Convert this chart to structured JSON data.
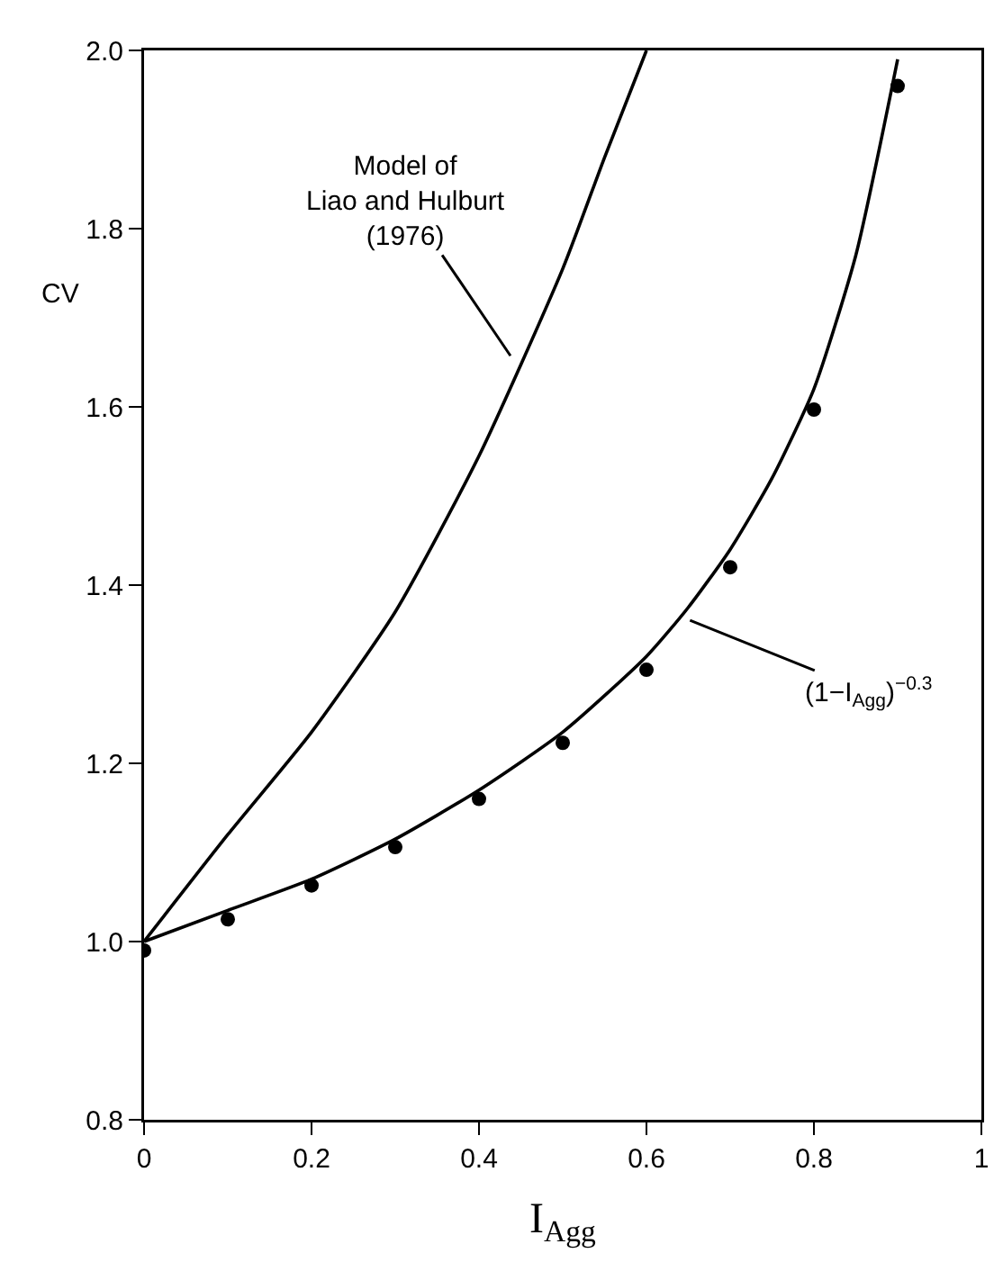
{
  "chart_data": {
    "type": "line",
    "xlabel": "I$_{Agg}$",
    "ylabel": "CV",
    "xlim": [
      0,
      1
    ],
    "xticks": [
      0,
      0.2,
      0.4,
      0.6,
      0.8,
      1
    ],
    "ylim": [
      0.8,
      2.0
    ],
    "yticks": [
      0.8,
      {
        "value": 1,
        "label": "1.0"
      },
      1.2,
      1.4,
      1.6,
      1.8,
      {
        "value": 2,
        "label": "2.0"
      }
    ],
    "grid": false,
    "series": [
      {
        "color": "#000000",
        "x": [
          0,
          0.1,
          0.2,
          0.3,
          0.4,
          0.5,
          0.55,
          0.6
        ],
        "values": [
          1.0,
          1.12,
          1.235,
          1.37,
          1.545,
          1.755,
          1.88,
          2.0
        ]
      },
      {
        "color": "#000000",
        "x": [
          0,
          0.1,
          0.2,
          0.3,
          0.4,
          0.5,
          0.6,
          0.65,
          0.7,
          0.75,
          0.8,
          0.85,
          0.9
        ],
        "values": [
          1.0,
          1.035,
          1.07,
          1.115,
          1.17,
          1.235,
          1.32,
          1.375,
          1.44,
          1.52,
          1.62,
          1.77,
          1.99
        ]
      },
      {
        "type": "scatter",
        "marker": "circle",
        "color": "#000000",
        "x": [
          0,
          0.1,
          0.2,
          0.3,
          0.4,
          0.5,
          0.6,
          0.7,
          0.8,
          0.9
        ],
        "values": [
          0.99,
          1.025,
          1.063,
          1.106,
          1.16,
          1.223,
          1.305,
          1.42,
          1.597,
          1.96
        ]
      }
    ],
    "annotations": [
      {
        "text": "Model of\nLiao and Hulburt\n(1976)",
        "x": 0.44,
        "y": 1.654
      },
      {
        "text": "(1−I$_{Agg}$)$^{−0.3}$",
        "x": 0.648,
        "y": 1.362
      }
    ]
  }
}
